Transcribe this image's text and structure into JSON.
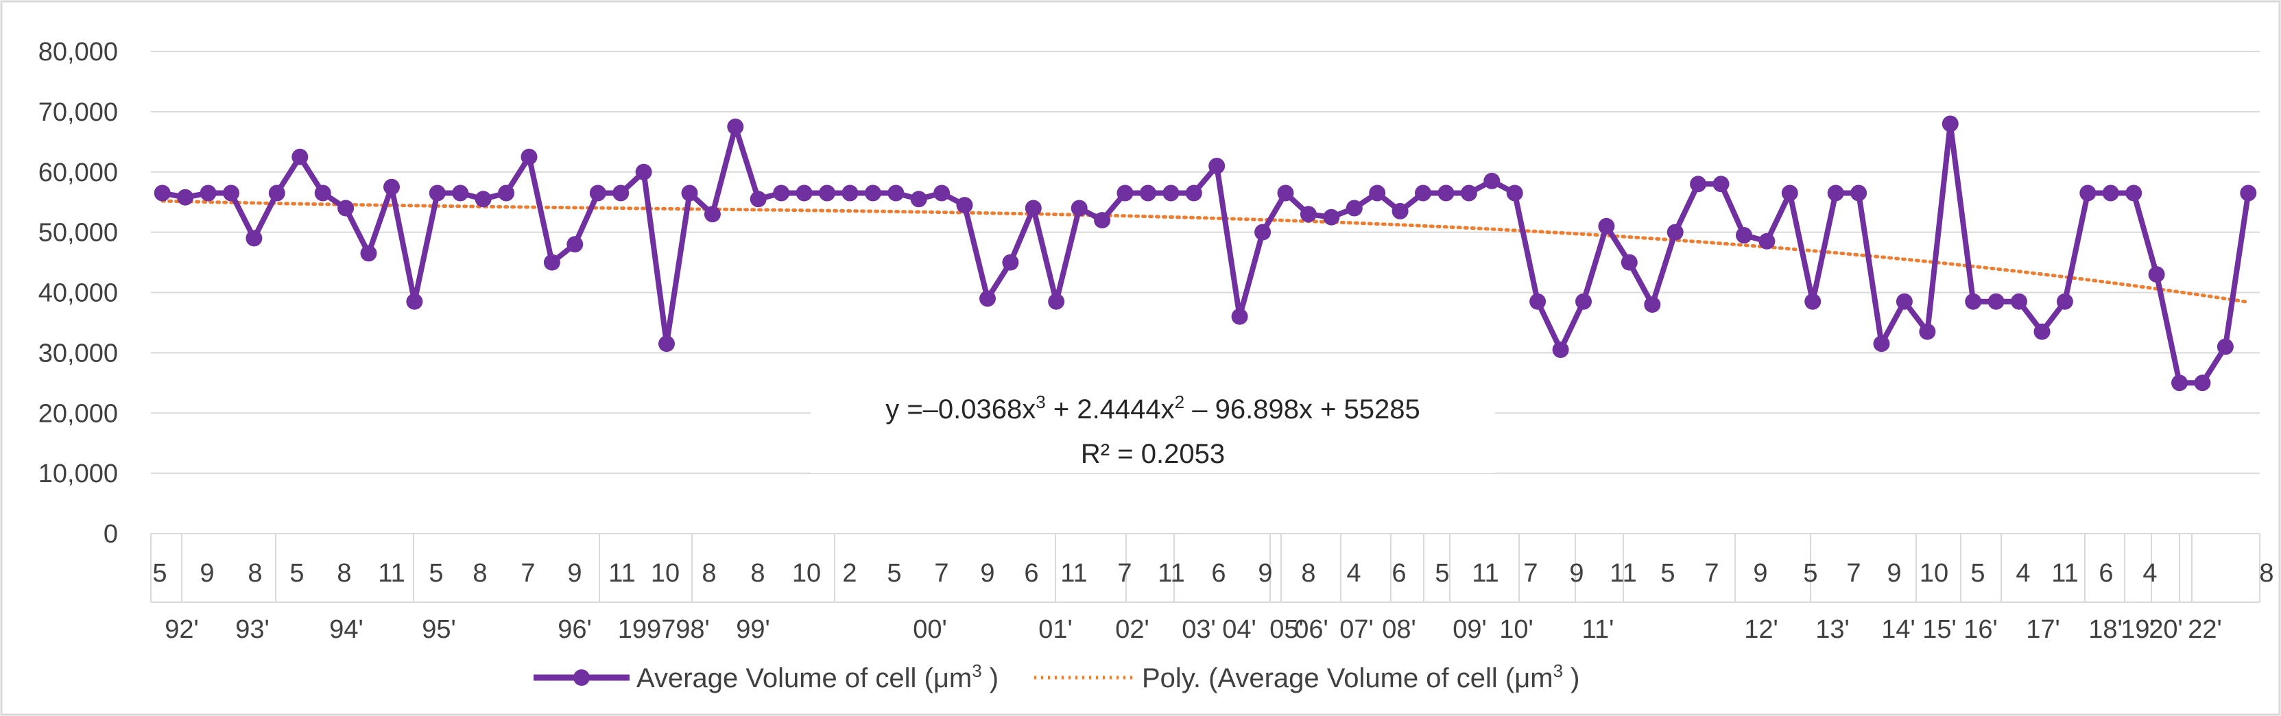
{
  "chart_data": {
    "type": "line",
    "title": "",
    "xlabel": "",
    "ylabel": "",
    "ylim": [
      0,
      80000
    ],
    "yticks": [
      "0",
      "10,000",
      "20,000",
      "30,000",
      "40,000",
      "50,000",
      "60,000",
      "70,000",
      "80,000"
    ],
    "grid": "horizontal",
    "legend_position": "bottom",
    "x_month_labels": [
      "5",
      "9",
      "8",
      "5",
      "8",
      "11",
      "5",
      "8",
      "7",
      "9",
      "11",
      "10",
      "8",
      "8",
      "10",
      "2",
      "5",
      "7",
      "9",
      "6",
      "11",
      "7",
      "11",
      "6",
      "9",
      "8",
      "4",
      "6",
      "5",
      "11",
      "7",
      "9",
      "11",
      "5",
      "7",
      "9",
      "5",
      "7",
      "9",
      "10",
      "5",
      "4",
      "11",
      "6",
      "4",
      "8"
    ],
    "x_year_labels": [
      "92'",
      "93'",
      "94'",
      "95'",
      "96'",
      "1997",
      "98'",
      "99'",
      "00'",
      "01'",
      "02'",
      "03'",
      "04'",
      "05'",
      "06'",
      "07'",
      "08'",
      "09'",
      "10'",
      "11'",
      "12'",
      "13'",
      "14'",
      "15'",
      "16'",
      "17'",
      "18'",
      "19'",
      "20'",
      "22'"
    ],
    "series": [
      {
        "name": "Average Volume of cell (μm³ )",
        "color": "#7030A0",
        "values": [
          56500,
          55800,
          56500,
          56500,
          49000,
          56500,
          62500,
          56500,
          54000,
          46500,
          57500,
          38500,
          56500,
          56500,
          55500,
          56500,
          62500,
          45000,
          48000,
          56500,
          56500,
          60000,
          31500,
          56500,
          53000,
          67500,
          55500,
          56500,
          56500,
          56500,
          56500,
          56500,
          56500,
          55500,
          56500,
          54500,
          39000,
          45000,
          54000,
          38500,
          54000,
          52000,
          56500,
          56500,
          56500,
          56500,
          61000,
          36000,
          50000,
          56500,
          53000,
          52500,
          54000,
          56500,
          53500,
          56500,
          56500,
          56500,
          58500,
          56500,
          38500,
          30500,
          38500,
          51000,
          45000,
          38000,
          50000,
          58000,
          58000,
          49500,
          48500,
          56500,
          38500,
          56500,
          56500,
          31500,
          38500,
          33500,
          68000,
          38500,
          38500,
          38500,
          33500,
          38500,
          56500,
          56500,
          56500,
          43000,
          25000,
          25000,
          31000,
          56500
        ]
      },
      {
        "name": "Poly. (Average Volume of cell (μm³ )",
        "color": "#ED7D31",
        "style": "dotted",
        "equation": {
          "a": -0.0368,
          "b": 2.4444,
          "c": -96.898,
          "d": 55285
        }
      }
    ],
    "annotations": [
      "y =–0.0368x3 + 2.4444x2 – 96.898x + 55285",
      "R² = 0.2053"
    ]
  }
}
